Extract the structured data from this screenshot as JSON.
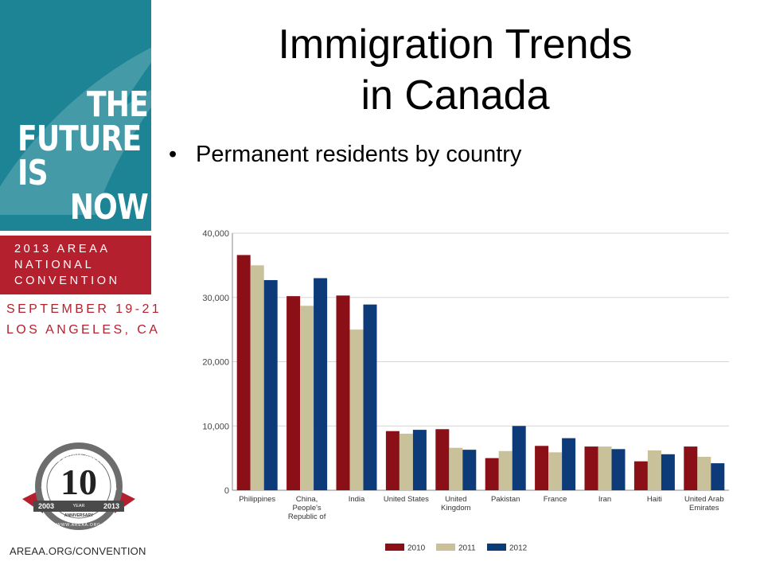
{
  "banner": {
    "headline_lines": [
      "THE",
      "FUTURE",
      "IS",
      "NOW"
    ],
    "event_lines": [
      "2013 AREAA",
      "NATIONAL",
      "CONVENTION"
    ],
    "date_lines": [
      "SEPTEMBER 19-21",
      "LOS ANGELES, CA"
    ],
    "seal": {
      "number": "10",
      "top_text": "ASIAN REAL ESTATE ASSOCIATION OF AMERICA",
      "year_text": "YEAR",
      "anniversary_text": "ANNIVERSARY",
      "start_year": "2003",
      "end_year": "2013",
      "url_text": "WWW.AREAA.ORG"
    },
    "url": "AREAA.ORG/CONVENTION",
    "colors": {
      "teal": "#1c8495",
      "red": "#b5202e"
    }
  },
  "slide": {
    "title_lines": [
      "Immigration Trends",
      "in Canada"
    ],
    "bullet": "Permanent residents by country"
  },
  "chart_data": {
    "type": "bar",
    "categories": [
      [
        "Philippines"
      ],
      [
        "China,",
        "People's",
        "Republic of"
      ],
      [
        "India"
      ],
      [
        "United States"
      ],
      [
        "United",
        "Kingdom"
      ],
      [
        "Pakistan"
      ],
      [
        "France"
      ],
      [
        "Iran"
      ],
      [
        "Haiti"
      ],
      [
        "United Arab",
        "Emirates"
      ]
    ],
    "series": [
      {
        "name": "2010",
        "color": "#8a0f16",
        "values": [
          36600,
          30200,
          30300,
          9200,
          9500,
          5000,
          6900,
          6800,
          4500,
          6800
        ]
      },
      {
        "name": "2011",
        "color": "#c9c19a",
        "values": [
          35000,
          28700,
          25000,
          8800,
          6600,
          6100,
          5900,
          6800,
          6200,
          5200
        ]
      },
      {
        "name": "2012",
        "color": "#0d3b7a",
        "values": [
          32700,
          33000,
          28900,
          9400,
          6300,
          10000,
          8100,
          6400,
          5600,
          4200
        ]
      }
    ],
    "y_ticks": [
      {
        "value": 0,
        "label": "0"
      },
      {
        "value": 10000,
        "label": "10,000"
      },
      {
        "value": 20000,
        "label": "20,000"
      },
      {
        "value": 30000,
        "label": "30,000"
      },
      {
        "value": 40000,
        "label": "40,000"
      }
    ],
    "ylim": [
      0,
      40000
    ],
    "grid": true,
    "legend_position": "bottom"
  }
}
